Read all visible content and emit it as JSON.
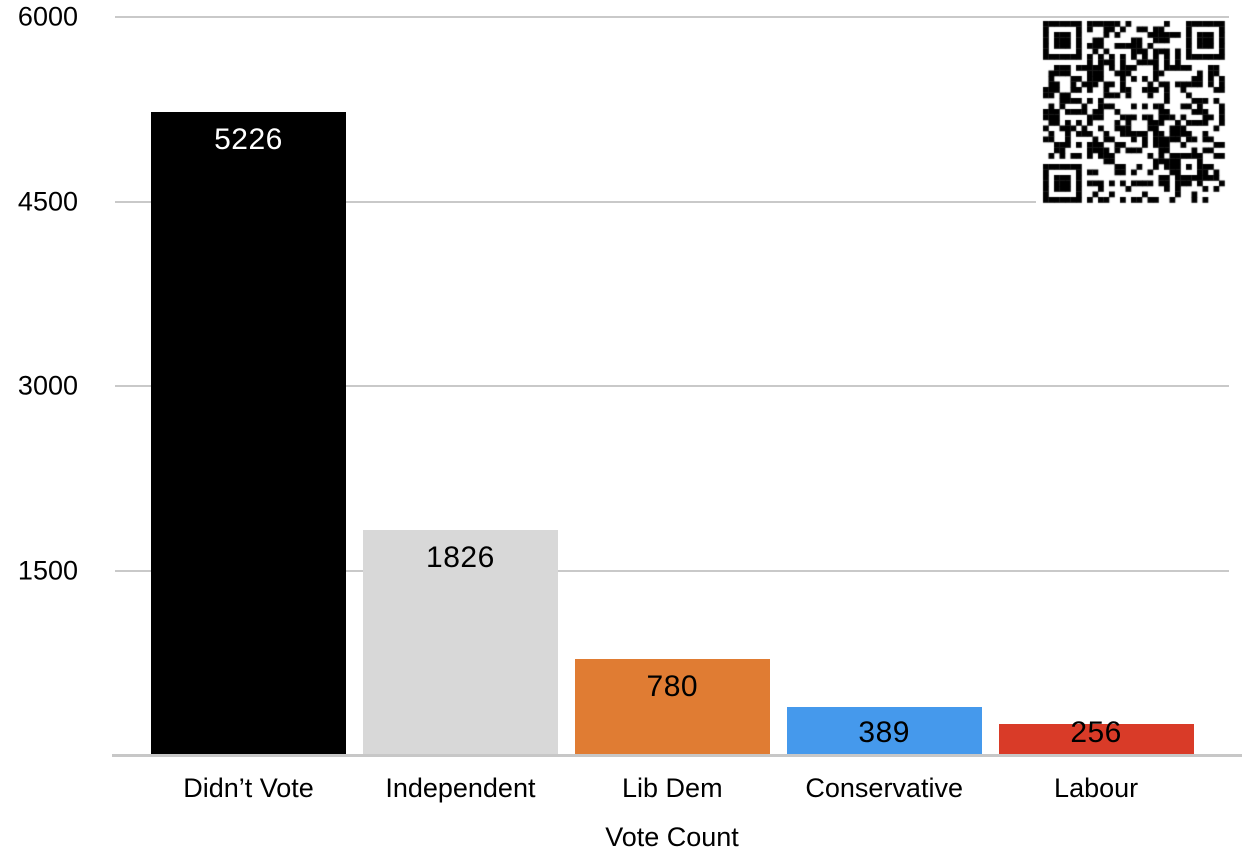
{
  "chart_data": {
    "type": "bar",
    "title": "",
    "xlabel": "Vote Count",
    "ylabel": "",
    "categories": [
      "Didn’t Vote",
      "Independent",
      "Lib Dem",
      "Conservative",
      "Labour"
    ],
    "values": [
      5226,
      1826,
      780,
      389,
      256
    ],
    "value_labels": [
      "5226",
      "1826",
      "780",
      "389",
      "256"
    ],
    "bar_colors": [
      "#000000",
      "#d8d8d8",
      "#e07c33",
      "#4599ec",
      "#d93b28"
    ],
    "value_label_colors": [
      "#ffffff",
      "#000000",
      "#000000",
      "#000000",
      "#000000"
    ],
    "y_ticks": [
      6000,
      4500,
      3000,
      1500
    ],
    "y_tick_labels": [
      "6000",
      "4500",
      "3000",
      "1500"
    ],
    "ylim": [
      0,
      6000
    ],
    "grid": true,
    "gridline_color": "#c9c9c9",
    "axis_line_color": "#c7c7c7",
    "legend": "none",
    "background_color": "#ffffff"
  },
  "qr_code": {
    "present": true,
    "position": "top-right",
    "modules": 33,
    "dark_color": "#000000",
    "light_color": "#ffffff"
  }
}
